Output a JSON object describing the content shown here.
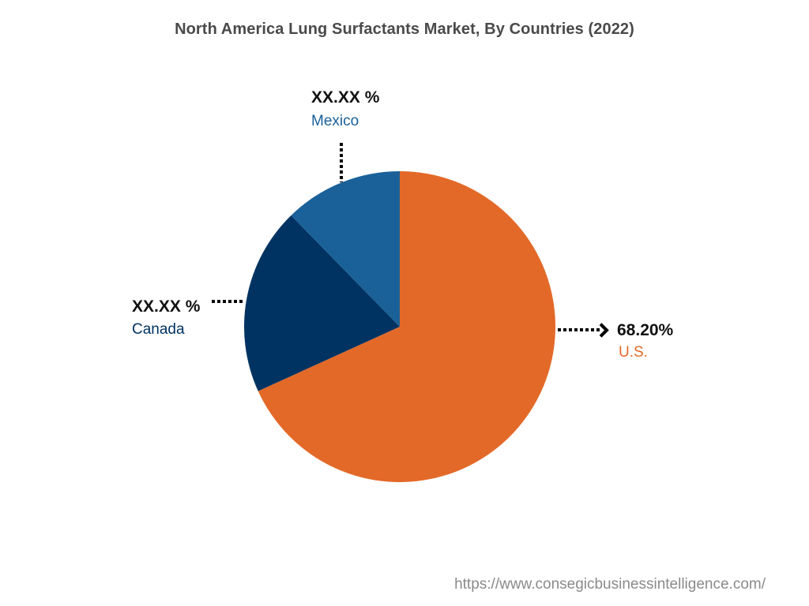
{
  "chart_data": {
    "type": "pie",
    "title": "North America Lung Surfactants Market, By Countries (2022)",
    "slices": [
      {
        "name": "U.S.",
        "value": 68.2,
        "label": "68.20%",
        "color": "#E36928"
      },
      {
        "name": "Canada",
        "value": 19.5,
        "label": "XX.XX %",
        "color": "#003362"
      },
      {
        "name": "Mexico",
        "value": 12.3,
        "label": "XX.XX %",
        "color": "#1A6199"
      }
    ],
    "start_angle_deg": 0,
    "direction": "clockwise",
    "legend": "none (callout labels)",
    "source": "https://www.consegicbusinessintelligence.com/"
  },
  "labels": {
    "mexico": {
      "value": "XX.XX %",
      "name": "Mexico",
      "color": "#1A6199"
    },
    "canada": {
      "value": "XX.XX %",
      "name": "Canada",
      "color": "#003362"
    },
    "us": {
      "value": "68.20%",
      "name": "U.S.",
      "color": "#E36928"
    }
  },
  "footer": {
    "source": "https://www.consegicbusinessintelligence.com/"
  }
}
